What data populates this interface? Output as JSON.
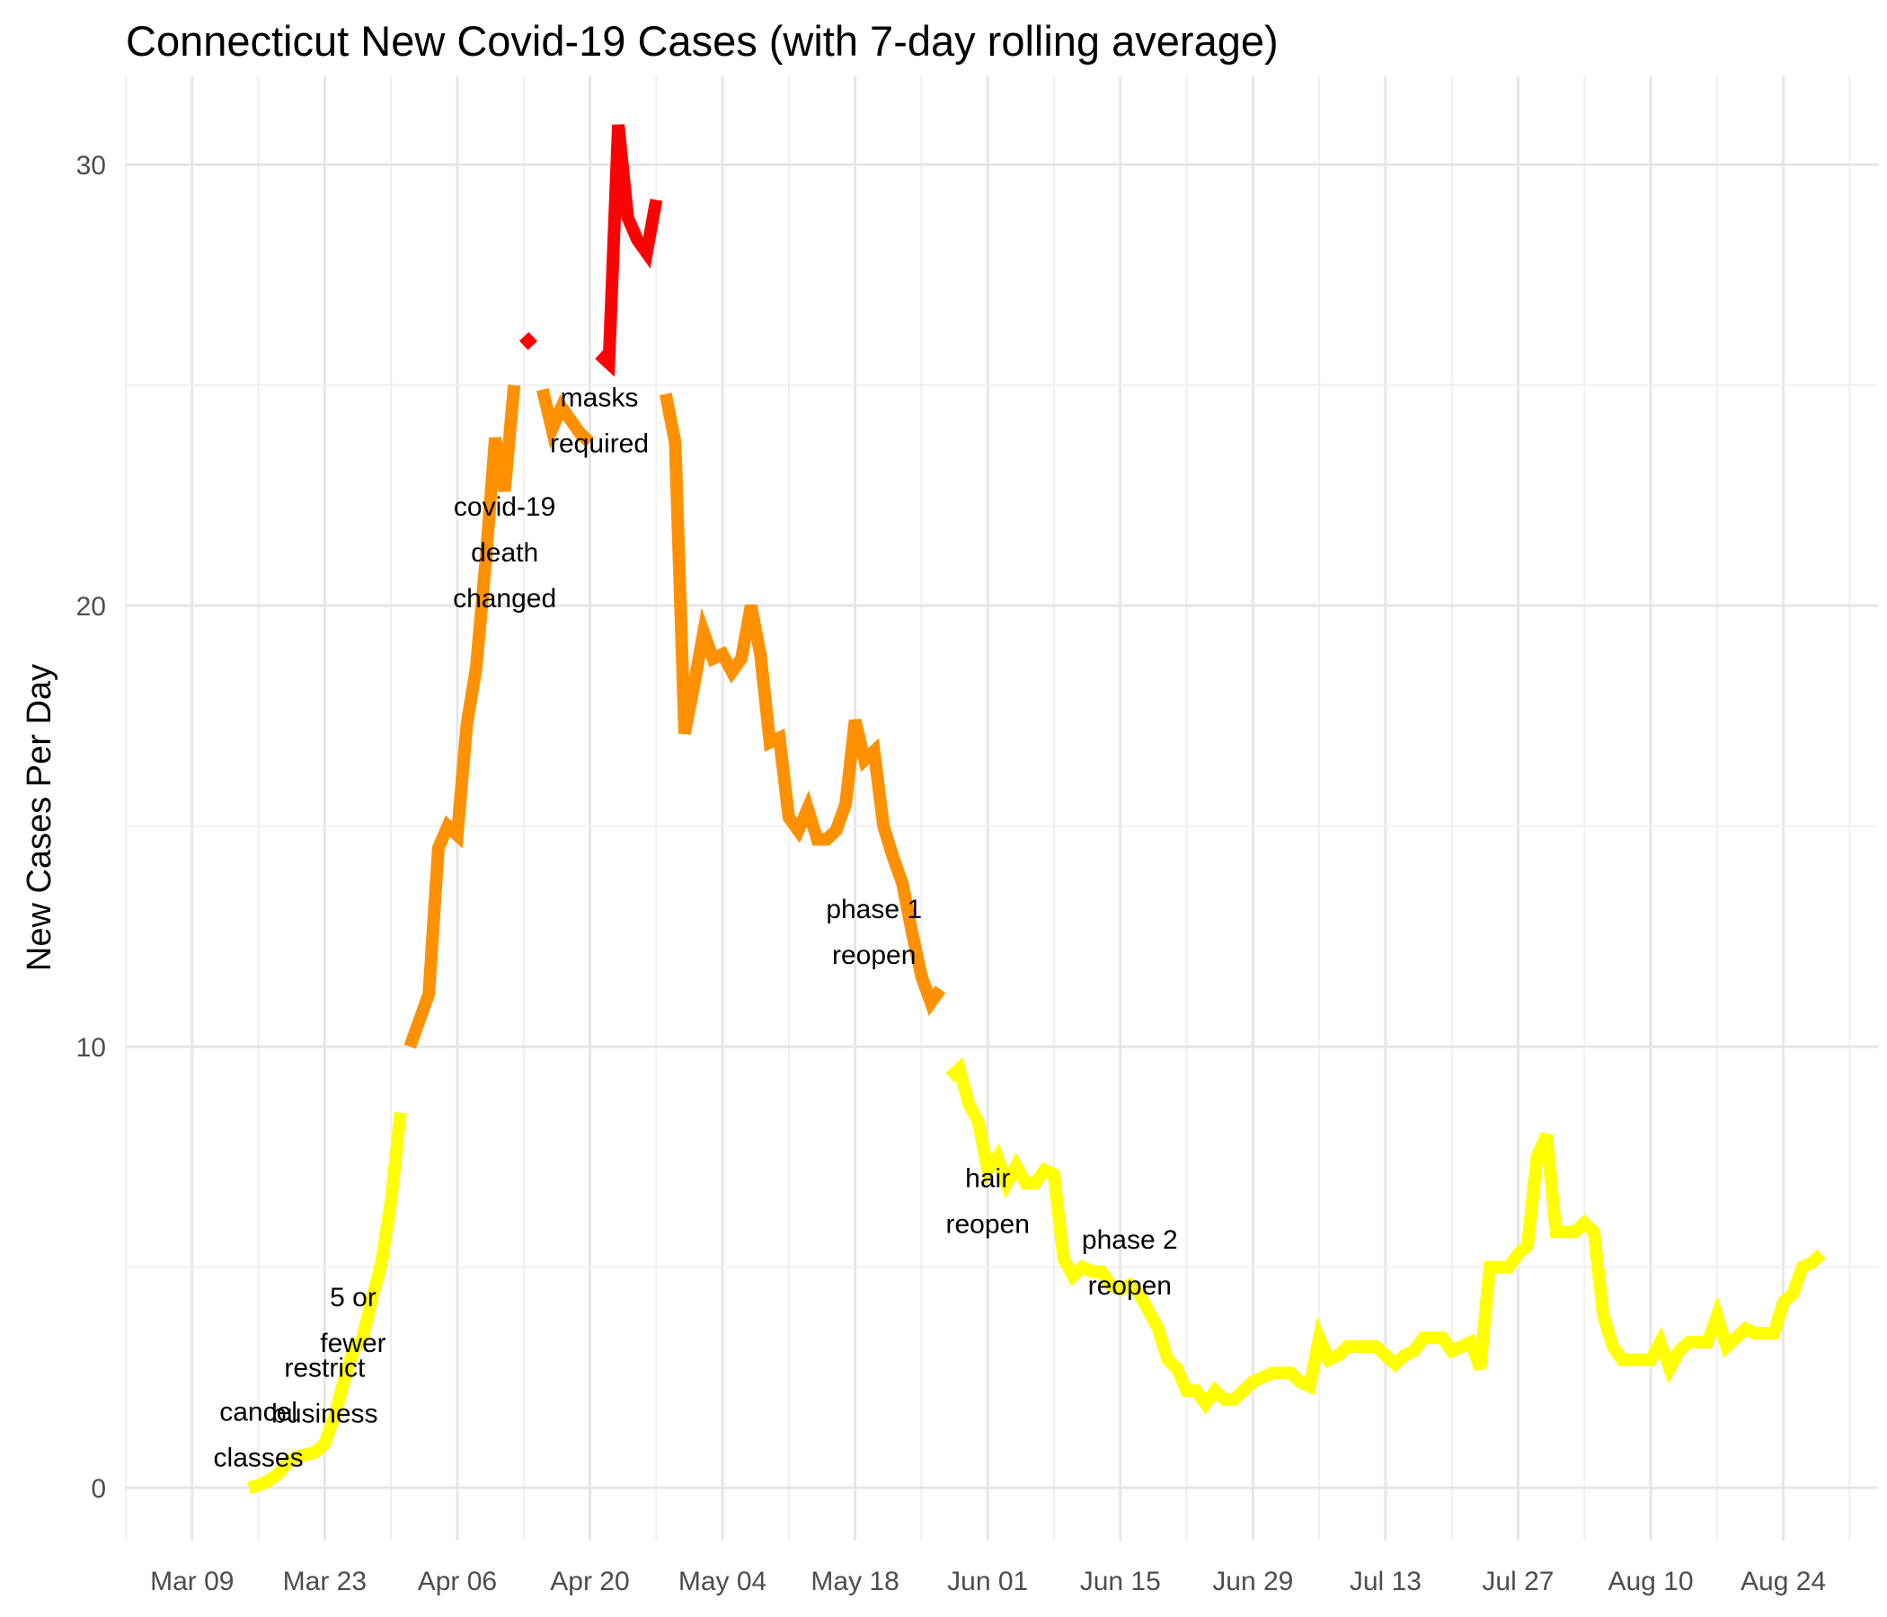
{
  "chart_data": {
    "type": "line",
    "title": "Connecticut New Covid-19 Cases (with 7-day rolling average)",
    "xlabel": "",
    "ylabel": "New Cases Per Day",
    "x_axis": {
      "type": "date",
      "year": 2020,
      "ticks": [
        "Mar 09",
        "Mar 23",
        "Apr 06",
        "Apr 20",
        "May 04",
        "May 18",
        "Jun 01",
        "Jun 15",
        "Jun 29",
        "Jul 13",
        "Jul 27",
        "Aug 10",
        "Aug 24"
      ],
      "range": [
        "2020-03-02",
        "2020-09-03"
      ]
    },
    "y_axis": {
      "ticks": [
        0,
        10,
        20,
        30
      ],
      "range": [
        -1.2,
        32
      ]
    },
    "grid": true,
    "legend": "none",
    "colors": {
      "yellow": "#ffff00",
      "orange": "#ff9100",
      "red": "#ff0000"
    },
    "series": [
      {
        "color": "yellow",
        "points": [
          [
            "2020-03-15",
            0
          ],
          [
            "2020-03-16",
            0.05
          ],
          [
            "2020-03-17",
            0.15
          ],
          [
            "2020-03-18",
            0.3
          ],
          [
            "2020-03-19",
            0.55
          ],
          [
            "2020-03-20",
            0.7
          ],
          [
            "2020-03-21",
            0.75
          ],
          [
            "2020-03-22",
            0.8
          ],
          [
            "2020-03-23",
            1.0
          ],
          [
            "2020-03-24",
            1.6
          ],
          [
            "2020-03-25",
            2.4
          ],
          [
            "2020-03-26",
            3.1
          ],
          [
            "2020-03-27",
            3.4
          ],
          [
            "2020-03-28",
            4.3
          ],
          [
            "2020-03-29",
            5.1
          ],
          [
            "2020-03-30",
            6.5
          ],
          [
            "2020-03-31",
            8.5
          ]
        ]
      },
      {
        "color": "orange",
        "points": [
          [
            "2020-04-01",
            10.0
          ],
          [
            "2020-04-02",
            10.6
          ],
          [
            "2020-04-03",
            11.2
          ],
          [
            "2020-04-04",
            14.5
          ],
          [
            "2020-04-05",
            15.0
          ],
          [
            "2020-04-06",
            14.8
          ],
          [
            "2020-04-07",
            17.3
          ],
          [
            "2020-04-08",
            18.6
          ],
          [
            "2020-04-09",
            21.0
          ],
          [
            "2020-04-10",
            23.8
          ],
          [
            "2020-04-11",
            22.6
          ],
          [
            "2020-04-12",
            25.0
          ]
        ]
      },
      {
        "color": "red",
        "points": [
          [
            "2020-04-13",
            25.9
          ],
          [
            "2020-04-14",
            26.1
          ]
        ]
      },
      {
        "color": "orange",
        "points": [
          [
            "2020-04-15",
            24.9
          ],
          [
            "2020-04-16",
            24.0
          ],
          [
            "2020-04-17",
            24.5
          ],
          [
            "2020-04-18",
            24.2
          ],
          [
            "2020-04-19",
            23.9
          ],
          [
            "2020-04-20",
            23.7
          ]
        ]
      },
      {
        "color": "red",
        "points": [
          [
            "2020-04-21",
            25.7
          ],
          [
            "2020-04-22",
            25.5
          ],
          [
            "2020-04-23",
            30.9
          ],
          [
            "2020-04-24",
            28.8
          ],
          [
            "2020-04-25",
            28.3
          ],
          [
            "2020-04-26",
            28.0
          ],
          [
            "2020-04-27",
            29.2
          ]
        ]
      },
      {
        "color": "orange",
        "points": [
          [
            "2020-04-28",
            24.8
          ],
          [
            "2020-04-29",
            23.7
          ],
          [
            "2020-04-30",
            17.1
          ],
          [
            "2020-05-01",
            18.2
          ],
          [
            "2020-05-02",
            19.4
          ],
          [
            "2020-05-03",
            18.8
          ],
          [
            "2020-05-04",
            18.9
          ],
          [
            "2020-05-05",
            18.5
          ],
          [
            "2020-05-06",
            18.8
          ],
          [
            "2020-05-07",
            20.0
          ],
          [
            "2020-05-08",
            18.9
          ],
          [
            "2020-05-09",
            16.9
          ],
          [
            "2020-05-10",
            17.0
          ],
          [
            "2020-05-11",
            15.2
          ],
          [
            "2020-05-12",
            14.9
          ],
          [
            "2020-05-13",
            15.4
          ],
          [
            "2020-05-14",
            14.7
          ],
          [
            "2020-05-15",
            14.7
          ],
          [
            "2020-05-16",
            14.9
          ],
          [
            "2020-05-17",
            15.5
          ],
          [
            "2020-05-18",
            17.4
          ],
          [
            "2020-05-19",
            16.5
          ],
          [
            "2020-05-20",
            16.7
          ],
          [
            "2020-05-21",
            15.0
          ],
          [
            "2020-05-22",
            14.3
          ],
          [
            "2020-05-23",
            13.7
          ],
          [
            "2020-05-24",
            12.6
          ],
          [
            "2020-05-25",
            11.6
          ],
          [
            "2020-05-26",
            11.0
          ],
          [
            "2020-05-27",
            11.3
          ]
        ]
      },
      {
        "color": "yellow",
        "points": [
          [
            "2020-05-28",
            9.3
          ],
          [
            "2020-05-29",
            9.5
          ],
          [
            "2020-05-30",
            8.7
          ],
          [
            "2020-05-31",
            8.3
          ],
          [
            "2020-06-01",
            7.2
          ],
          [
            "2020-06-02",
            7.5
          ],
          [
            "2020-06-03",
            6.9
          ],
          [
            "2020-06-04",
            7.3
          ],
          [
            "2020-06-05",
            6.9
          ],
          [
            "2020-06-06",
            6.9
          ],
          [
            "2020-06-07",
            7.2
          ],
          [
            "2020-06-08",
            7.1
          ],
          [
            "2020-06-09",
            5.2
          ],
          [
            "2020-06-10",
            4.8
          ],
          [
            "2020-06-11",
            5.0
          ],
          [
            "2020-06-12",
            4.9
          ],
          [
            "2020-06-13",
            4.9
          ],
          [
            "2020-06-14",
            4.6
          ],
          [
            "2020-06-15",
            4.5
          ],
          [
            "2020-06-16",
            4.6
          ],
          [
            "2020-06-17",
            4.4
          ],
          [
            "2020-06-18",
            4.0
          ],
          [
            "2020-06-19",
            3.6
          ],
          [
            "2020-06-20",
            2.9
          ],
          [
            "2020-06-21",
            2.7
          ],
          [
            "2020-06-22",
            2.2
          ],
          [
            "2020-06-23",
            2.2
          ],
          [
            "2020-06-24",
            1.9
          ],
          [
            "2020-06-25",
            2.2
          ],
          [
            "2020-06-26",
            2.0
          ],
          [
            "2020-06-27",
            2.0
          ],
          [
            "2020-06-28",
            2.2
          ],
          [
            "2020-06-29",
            2.4
          ],
          [
            "2020-06-30",
            2.5
          ],
          [
            "2020-07-01",
            2.6
          ],
          [
            "2020-07-02",
            2.6
          ],
          [
            "2020-07-03",
            2.6
          ],
          [
            "2020-07-04",
            2.4
          ],
          [
            "2020-07-05",
            2.3
          ],
          [
            "2020-07-06",
            3.4
          ],
          [
            "2020-07-07",
            2.9
          ],
          [
            "2020-07-08",
            3.0
          ],
          [
            "2020-07-09",
            3.2
          ],
          [
            "2020-07-10",
            3.2
          ],
          [
            "2020-07-11",
            3.2
          ],
          [
            "2020-07-12",
            3.2
          ],
          [
            "2020-07-13",
            3.0
          ],
          [
            "2020-07-14",
            2.8
          ],
          [
            "2020-07-15",
            3.0
          ],
          [
            "2020-07-16",
            3.1
          ],
          [
            "2020-07-17",
            3.4
          ],
          [
            "2020-07-18",
            3.4
          ],
          [
            "2020-07-19",
            3.4
          ],
          [
            "2020-07-20",
            3.1
          ],
          [
            "2020-07-21",
            3.2
          ],
          [
            "2020-07-22",
            3.3
          ],
          [
            "2020-07-23",
            2.7
          ],
          [
            "2020-07-24",
            5.0
          ],
          [
            "2020-07-25",
            5.0
          ],
          [
            "2020-07-26",
            5.0
          ],
          [
            "2020-07-27",
            5.3
          ],
          [
            "2020-07-28",
            5.5
          ],
          [
            "2020-07-29",
            7.5
          ],
          [
            "2020-07-30",
            8.0
          ],
          [
            "2020-07-31",
            5.8
          ],
          [
            "2020-08-01",
            5.8
          ],
          [
            "2020-08-02",
            5.8
          ],
          [
            "2020-08-03",
            6.0
          ],
          [
            "2020-08-04",
            5.8
          ],
          [
            "2020-08-05",
            3.9
          ],
          [
            "2020-08-06",
            3.2
          ],
          [
            "2020-08-07",
            2.9
          ],
          [
            "2020-08-08",
            2.9
          ],
          [
            "2020-08-09",
            2.9
          ],
          [
            "2020-08-10",
            2.9
          ],
          [
            "2020-08-11",
            3.3
          ],
          [
            "2020-08-12",
            2.7
          ],
          [
            "2020-08-13",
            3.1
          ],
          [
            "2020-08-14",
            3.3
          ],
          [
            "2020-08-15",
            3.3
          ],
          [
            "2020-08-16",
            3.3
          ],
          [
            "2020-08-17",
            3.9
          ],
          [
            "2020-08-18",
            3.2
          ],
          [
            "2020-08-19",
            3.4
          ],
          [
            "2020-08-20",
            3.6
          ],
          [
            "2020-08-21",
            3.5
          ],
          [
            "2020-08-22",
            3.5
          ],
          [
            "2020-08-23",
            3.5
          ],
          [
            "2020-08-24",
            4.2
          ],
          [
            "2020-08-25",
            4.4
          ],
          [
            "2020-08-26",
            5.0
          ],
          [
            "2020-08-27",
            5.1
          ],
          [
            "2020-08-28",
            5.3
          ]
        ]
      }
    ],
    "annotations": [
      {
        "date": "2020-03-16",
        "y": 1.2,
        "lines": [
          "cancel",
          "classes"
        ]
      },
      {
        "date": "2020-03-23",
        "y": 2.2,
        "lines": [
          "restrict",
          "business"
        ]
      },
      {
        "date": "2020-03-26",
        "y": 3.8,
        "lines": [
          "5 or",
          "fewer"
        ]
      },
      {
        "date": "2020-04-11",
        "y": 21.2,
        "lines": [
          "covid-19",
          "death",
          "changed"
        ]
      },
      {
        "date": "2020-04-21",
        "y": 24.2,
        "lines": [
          "masks",
          "required"
        ]
      },
      {
        "date": "2020-05-20",
        "y": 12.6,
        "lines": [
          "phase 1",
          "reopen"
        ]
      },
      {
        "date": "2020-06-01",
        "y": 6.5,
        "lines": [
          "hair",
          "reopen"
        ]
      },
      {
        "date": "2020-06-16",
        "y": 5.1,
        "lines": [
          "phase 2",
          "reopen"
        ]
      }
    ]
  }
}
